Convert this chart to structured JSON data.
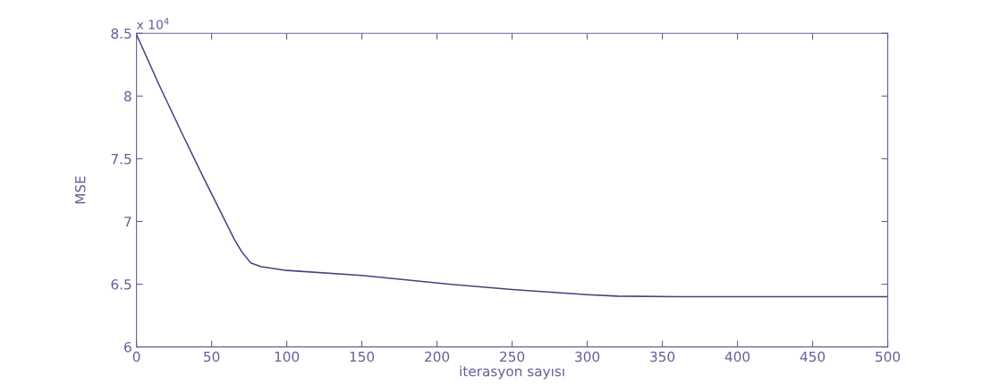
{
  "chart_data": {
    "type": "line",
    "xlabel": "iterasyon sayısı",
    "ylabel": "MSE",
    "annotations": [
      "x 10$^{4}$"
    ],
    "series": [
      {
        "color": "#4b3f7e",
        "x": [
          0,
          15,
          30,
          45,
          55,
          65,
          70,
          76,
          83,
          100,
          150,
          208,
          250,
          300,
          320,
          360,
          500
        ],
        "values": [
          8.49,
          8.09,
          7.71,
          7.34,
          7.1,
          6.86,
          6.76,
          6.67,
          6.64,
          6.61,
          6.57,
          6.5,
          6.457,
          6.417,
          6.405,
          6.4,
          6.4
        ]
      }
    ],
    "xlim": [
      0,
      500
    ],
    "xticks": [
      0,
      50,
      100,
      150,
      200,
      250,
      300,
      350,
      400,
      450,
      500
    ],
    "ylim": [
      6,
      8.5
    ],
    "yticks": [
      6,
      6.5,
      7,
      7.5,
      8,
      8.5
    ],
    "grid": false,
    "line_style": "solid",
    "marker": "none"
  }
}
